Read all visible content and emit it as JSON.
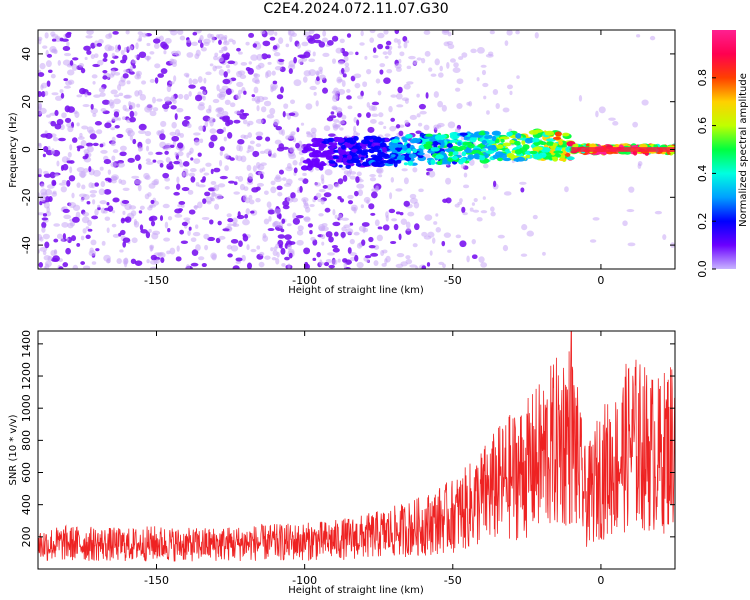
{
  "title": "C2E4.2024.072.11.07.G30",
  "colors": {
    "series": "#ee2222",
    "spectrum_fill": "#8a2be2",
    "colorbar_stops": [
      "#c8b4ff",
      "#6a00ff",
      "#0000ff",
      "#00a0ff",
      "#00ffe0",
      "#00ff40",
      "#c0ff00",
      "#ffd000",
      "#ff4000",
      "#ff0050",
      "#ff2090"
    ]
  },
  "chart_data": [
    {
      "type": "heatmap",
      "xlabel": "Height of straight line (km)",
      "ylabel": "Frequency (Hz)",
      "xlim": [
        -190,
        25
      ],
      "ylim": [
        -50,
        50
      ],
      "xticks": [
        -150,
        -100,
        -50,
        0
      ],
      "yticks": [
        -40,
        -20,
        0,
        20,
        40
      ],
      "colorbar": {
        "label": "Normalized spectral amplitude",
        "range": [
          0,
          1
        ],
        "ticks": [
          0.0,
          0.2,
          0.4,
          0.6,
          0.8
        ]
      },
      "signal_band": {
        "x": [
          -100,
          -80,
          -60,
          -40,
          -20,
          -10,
          0,
          10,
          20,
          25
        ],
        "center_freq": [
          -2,
          -1,
          0,
          1,
          2,
          0.5,
          0,
          0,
          0,
          0
        ],
        "amplitude": [
          0.1,
          0.2,
          0.4,
          0.5,
          0.6,
          0.75,
          0.95,
          0.9,
          0.7,
          0.7
        ]
      }
    },
    {
      "type": "line",
      "xlabel": "Height of straight line (km)",
      "ylabel": "SNR (10 * v/v)",
      "xlim": [
        -190,
        25
      ],
      "ylim": [
        0,
        1480
      ],
      "xticks": [
        -150,
        -100,
        -50,
        0
      ],
      "yticks": [
        200,
        400,
        600,
        800,
        1000,
        1200,
        1400
      ],
      "series": [
        {
          "x": [
            -190,
            -180,
            -170,
            -160,
            -150,
            -140,
            -130,
            -120,
            -110,
            -100,
            -90,
            -80,
            -70,
            -60,
            -50,
            -45,
            -40,
            -35,
            -30,
            -25,
            -20,
            -15,
            -10,
            -5,
            0,
            5,
            10,
            15,
            20,
            25
          ],
          "values": [
            150,
            160,
            155,
            150,
            160,
            150,
            155,
            160,
            165,
            170,
            180,
            200,
            230,
            270,
            330,
            380,
            450,
            520,
            580,
            620,
            700,
            780,
            850,
            420,
            600,
            650,
            800,
            750,
            700,
            820
          ]
        }
      ]
    }
  ]
}
